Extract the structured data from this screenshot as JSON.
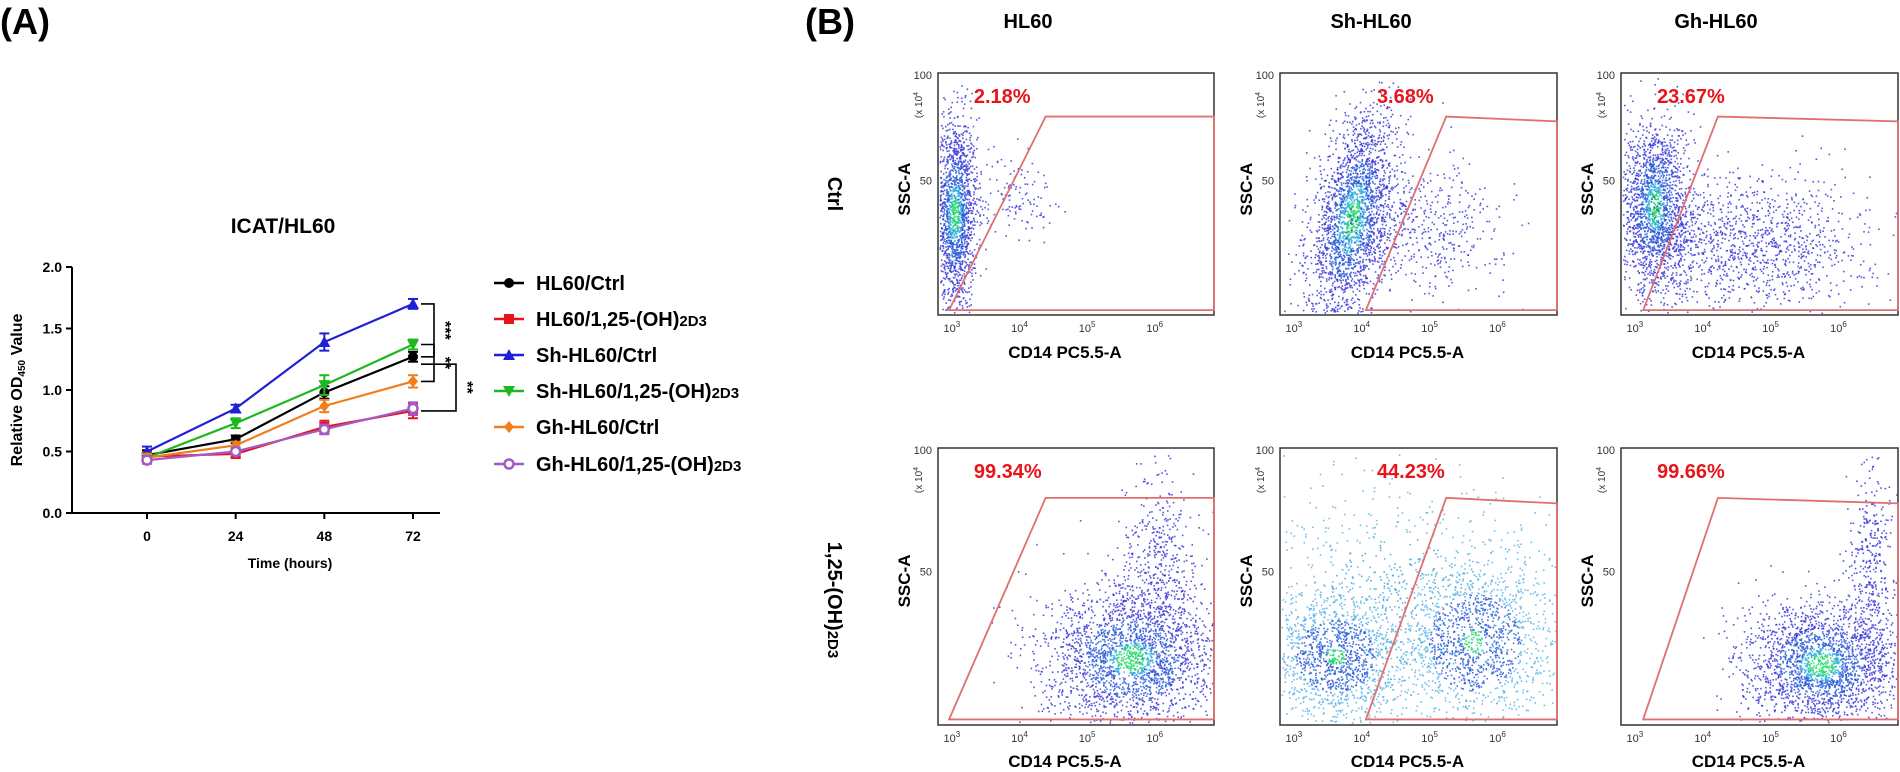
{
  "panel_a_label": "(A)",
  "panel_b_label": "(B)",
  "chart_data": [
    {
      "type": "line",
      "title": "ICAT/HL60",
      "xlabel": "Time (hours)",
      "ylabel": "Relative OD 450 Value",
      "ylabel_main": "Relative OD",
      "ylabel_sub": "450",
      "ylabel_tail": " Value",
      "x": [
        0,
        24,
        48,
        72
      ],
      "x_ticks": [
        "0",
        "24",
        "48",
        "72"
      ],
      "y_ticks": [
        "0.0",
        "0.5",
        "1.0",
        "1.5",
        "2.0"
      ],
      "ylim": [
        0,
        2.0
      ],
      "series": [
        {
          "name": "HL60/Ctrl",
          "legend_main": "HL60/Ctrl",
          "legend_sub": "",
          "color": "#000000",
          "marker": "circle",
          "values": [
            0.47,
            0.6,
            0.98,
            1.27
          ],
          "errors": [
            0.04,
            0.03,
            0.05,
            0.04
          ]
        },
        {
          "name": "HL60/1,25-(OH)2D3",
          "legend_main": "HL60/1,25-(OH)",
          "legend_sub": "2D3",
          "color": "#e8141c",
          "marker": "square",
          "values": [
            0.46,
            0.48,
            0.7,
            0.83
          ],
          "errors": [
            0.03,
            0.03,
            0.05,
            0.06
          ]
        },
        {
          "name": "Sh-HL60/Ctrl",
          "legend_main": "Sh-HL60/Ctrl",
          "legend_sub": "",
          "color": "#1f1fd6",
          "marker": "triangle-up",
          "values": [
            0.5,
            0.85,
            1.39,
            1.7
          ],
          "errors": [
            0.04,
            0.03,
            0.07,
            0.04
          ]
        },
        {
          "name": "Sh-HL60/1,25-(OH)2D3",
          "legend_main": "Sh-HL60/1,25-(OH)",
          "legend_sub": "2D3",
          "color": "#1db81d",
          "marker": "triangle-down",
          "values": [
            0.45,
            0.73,
            1.04,
            1.37
          ],
          "errors": [
            0.03,
            0.04,
            0.08,
            0.04
          ]
        },
        {
          "name": "Gh-HL60/Ctrl",
          "legend_main": "Gh-HL60/Ctrl",
          "legend_sub": "",
          "color": "#f07d1e",
          "marker": "diamond",
          "values": [
            0.45,
            0.55,
            0.87,
            1.07
          ],
          "errors": [
            0.03,
            0.03,
            0.05,
            0.05
          ]
        },
        {
          "name": "Gh-HL60/1,25-(OH)2D3",
          "legend_main": "Gh-HL60/1,25-(OH)",
          "legend_sub": "2D3",
          "color": "#a55ac8",
          "marker": "circle-open",
          "values": [
            0.43,
            0.5,
            0.68,
            0.85
          ],
          "errors": [
            0.03,
            0.03,
            0.04,
            0.05
          ]
        }
      ],
      "significance": [
        "***",
        "**",
        "**"
      ]
    },
    {
      "type": "scatter",
      "subtype": "flow-cytometry-grid",
      "column_titles": [
        "HL60",
        "Sh-HL60",
        "Gh-HL60"
      ],
      "row_labels": [
        "Ctrl",
        "1,25-(OH)2D3"
      ],
      "row_label_main": [
        "Ctrl",
        "1,25-(OH)"
      ],
      "row_label_sub": [
        "",
        "2D3"
      ],
      "xlabel": "CD14 PC5.5-A",
      "ylabel": "SSC-A",
      "y_multiplier": "(x 10",
      "y_multiplier_exp": "4",
      "y_ticks": [
        "100",
        "50"
      ],
      "x_ticks": [
        "10",
        "10",
        "10",
        "10"
      ],
      "x_tick_exps": [
        "3",
        "4",
        "5",
        "6"
      ],
      "gate_color": "#e07070",
      "percent_color": "#e8141c",
      "panels": [
        {
          "row": 0,
          "col": 0,
          "percent": "2.18%"
        },
        {
          "row": 0,
          "col": 1,
          "percent": "3.68%"
        },
        {
          "row": 0,
          "col": 2,
          "percent": "23.67%"
        },
        {
          "row": 1,
          "col": 0,
          "percent": "99.34%"
        },
        {
          "row": 1,
          "col": 1,
          "percent": "44.23%"
        },
        {
          "row": 1,
          "col": 2,
          "percent": "99.66%"
        }
      ]
    }
  ]
}
